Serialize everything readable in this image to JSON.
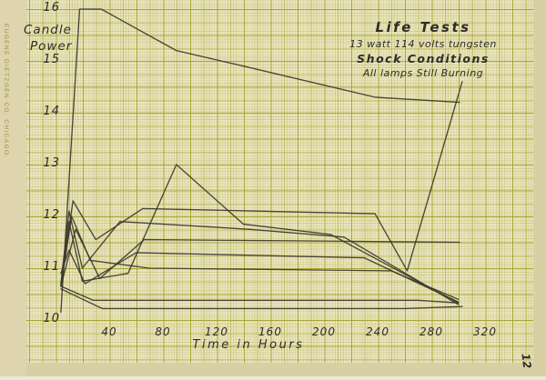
{
  "page": {
    "margin_text": "EUGENE DIETZGEN CO. CHICAGO.",
    "page_number": "12"
  },
  "colors": {
    "paper": "#eae5c2",
    "photo_margin": "#d9cfa4",
    "grid_line_major": "#a8a428",
    "grid_line_minor": "#c6c261",
    "ink": "#3c3a2e",
    "handwriting": "#2f2d25",
    "brand_text": "#8f8d3c"
  },
  "chart_data": {
    "type": "line",
    "title": "Life Tests",
    "subtitle_lines": [
      "13 watt 114 volts tungsten",
      "Shock Conditions",
      "All lamps Still Burning"
    ],
    "xlabel": "Time in Hours",
    "ylabel": "Candle Power",
    "ylabel_lines": [
      "Candle",
      "Power"
    ],
    "x_ticks": [
      40,
      80,
      120,
      160,
      200,
      240,
      280,
      320
    ],
    "y_ticks": [
      10,
      11,
      12,
      13,
      14,
      15,
      16
    ],
    "xlim": [
      0,
      355
    ],
    "ylim": [
      10,
      16.1
    ],
    "grid": true,
    "legend": false,
    "units": {
      "x": "hours",
      "y": "candle power"
    },
    "series": [
      {
        "name": "lamp-1",
        "points": [
          [
            4,
            10.15
          ],
          [
            18,
            16.0
          ],
          [
            34,
            16.0
          ],
          [
            90,
            15.2
          ],
          [
            140,
            14.9
          ],
          [
            238,
            14.3
          ],
          [
            301,
            14.2
          ]
        ]
      },
      {
        "name": "lamp-2",
        "points": [
          [
            4,
            10.65
          ],
          [
            10,
            11.9
          ],
          [
            20,
            10.75
          ],
          [
            54,
            10.9
          ],
          [
            90,
            13.0
          ],
          [
            140,
            11.85
          ],
          [
            205,
            11.65
          ],
          [
            300,
            10.33
          ]
        ]
      },
      {
        "name": "lamp-3",
        "points": [
          [
            4,
            10.65
          ],
          [
            13,
            12.3
          ],
          [
            30,
            11.55
          ],
          [
            65,
            12.15
          ],
          [
            238,
            12.05
          ],
          [
            262,
            10.95
          ],
          [
            303,
            14.6
          ]
        ]
      },
      {
        "name": "lamp-4",
        "points": [
          [
            4,
            10.65
          ],
          [
            15,
            11.75
          ],
          [
            33,
            10.8
          ],
          [
            66,
            11.55
          ],
          [
            220,
            11.52
          ],
          [
            301,
            11.5
          ]
        ]
      },
      {
        "name": "lamp-5",
        "points": [
          [
            4,
            10.9
          ],
          [
            10,
            11.35
          ],
          [
            22,
            10.7
          ],
          [
            60,
            11.3
          ],
          [
            230,
            11.2
          ],
          [
            300,
            10.35
          ]
        ]
      },
      {
        "name": "lamp-6",
        "points": [
          [
            4,
            10.65
          ],
          [
            12,
            12.0
          ],
          [
            26,
            11.15
          ],
          [
            70,
            11.0
          ],
          [
            250,
            10.95
          ],
          [
            300,
            10.4
          ]
        ]
      },
      {
        "name": "lamp-7",
        "points": [
          [
            4,
            10.65
          ],
          [
            28,
            10.38
          ],
          [
            270,
            10.38
          ],
          [
            300,
            10.33
          ]
        ]
      },
      {
        "name": "lamp-8",
        "points": [
          [
            4,
            10.6
          ],
          [
            35,
            10.22
          ],
          [
            260,
            10.22
          ],
          [
            303,
            10.26
          ]
        ]
      },
      {
        "name": "lamp-9",
        "points": [
          [
            4,
            10.7
          ],
          [
            10,
            12.1
          ],
          [
            20,
            11.0
          ],
          [
            48,
            11.9
          ],
          [
            145,
            11.75
          ],
          [
            215,
            11.6
          ],
          [
            300,
            10.3
          ]
        ]
      }
    ]
  }
}
